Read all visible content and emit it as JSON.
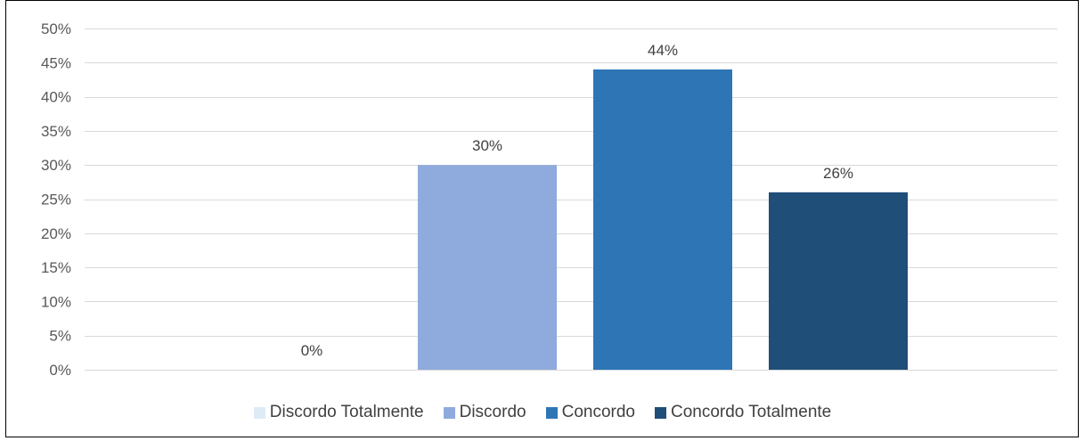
{
  "chart_data": {
    "type": "bar",
    "title": "",
    "xlabel": "",
    "ylabel": "",
    "ylim": [
      0,
      50
    ],
    "ytick_step": 5,
    "ytick_suffix": "%",
    "grid": true,
    "legend_position": "bottom",
    "categories": [
      "Discordo Totalmente",
      "Discordo",
      "Concordo",
      "Concordo Totalmente"
    ],
    "values": [
      0,
      30,
      44,
      26
    ],
    "data_labels": [
      "0%",
      "30%",
      "44%",
      "26%"
    ],
    "colors": [
      "#DDEBF7",
      "#8FAADC",
      "#2E75B6",
      "#1F4E79"
    ]
  }
}
